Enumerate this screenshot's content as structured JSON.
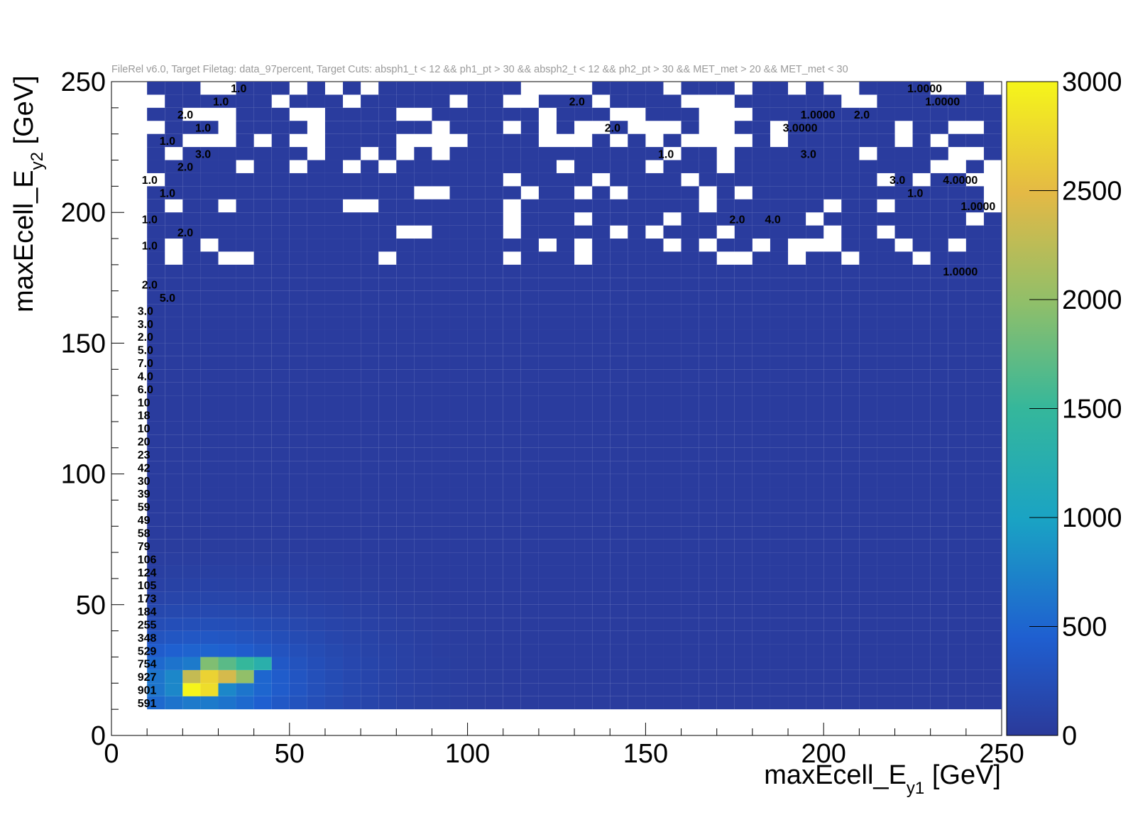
{
  "header": "FileRel v6.0, Target Filetag: data_97percent, Target Cuts: absph1_t < 12 && ph1_pt > 30 && absph2_t < 12 && ph2_pt > 30 && MET_met > 20 && MET_met < 30",
  "chart_data": {
    "type": "heatmap",
    "title": "",
    "xlabel": "maxEcell_E_y1 [GeV]",
    "ylabel": "maxEcell_E_y2 [GeV]",
    "xlim": [
      0,
      250
    ],
    "ylim": [
      0,
      250
    ],
    "x_ticks": [
      "0",
      "50",
      "100",
      "150",
      "200",
      "250"
    ],
    "y_ticks": [
      "0",
      "50",
      "100",
      "150",
      "200",
      "250"
    ],
    "colorbar": {
      "range": [
        0,
        3000
      ],
      "ticks": [
        "0",
        "500",
        "1000",
        "1500",
        "2000",
        "2500",
        "3000"
      ]
    },
    "colors": {
      "low": "#2b3a9a",
      "mid": "#1aa3c4",
      "high": "#f5e11a",
      "text": "#000000"
    },
    "y_row_labels": [
      {
        "y": 12.5,
        "label": "591"
      },
      {
        "y": 17.5,
        "label": "901"
      },
      {
        "y": 22.5,
        "label": "927"
      },
      {
        "y": 27.5,
        "label": "754"
      },
      {
        "y": 32.5,
        "label": "529"
      },
      {
        "y": 37.5,
        "label": "348"
      },
      {
        "y": 42.5,
        "label": "255"
      },
      {
        "y": 47.5,
        "label": "184"
      },
      {
        "y": 52.5,
        "label": "173"
      },
      {
        "y": 57.5,
        "label": "105"
      },
      {
        "y": 62.5,
        "label": "124"
      },
      {
        "y": 67.5,
        "label": "106"
      },
      {
        "y": 72.5,
        "label": "79"
      },
      {
        "y": 77.5,
        "label": "58"
      },
      {
        "y": 82.5,
        "label": "49"
      },
      {
        "y": 87.5,
        "label": "59"
      },
      {
        "y": 92.5,
        "label": "39"
      },
      {
        "y": 97.5,
        "label": "30"
      },
      {
        "y": 102.5,
        "label": "42"
      },
      {
        "y": 107.5,
        "label": "23"
      },
      {
        "y": 112.5,
        "label": "20"
      },
      {
        "y": 117.5,
        "label": "10"
      },
      {
        "y": 122.5,
        "label": "18"
      },
      {
        "y": 127.5,
        "label": "10"
      },
      {
        "y": 132.5,
        "label": "6.0"
      },
      {
        "y": 137.5,
        "label": "4.0"
      },
      {
        "y": 142.5,
        "label": "7.0"
      },
      {
        "y": 147.5,
        "label": "5.0"
      },
      {
        "y": 152.5,
        "label": "2.0"
      },
      {
        "y": 157.5,
        "label": "3.0"
      },
      {
        "y": 162.5,
        "label": "3.0"
      }
    ],
    "notable_cells": [
      {
        "x": 22.5,
        "y": 17.5,
        "value": 3000
      },
      {
        "x": 27.5,
        "y": 17.5,
        "value": 2800
      },
      {
        "x": 27.5,
        "y": 22.5,
        "value": 2700
      },
      {
        "x": 32.5,
        "y": 22.5,
        "value": 2400
      },
      {
        "x": 22.5,
        "y": 22.5,
        "value": 2300
      },
      {
        "x": 37.5,
        "y": 22.5,
        "value": 2000
      },
      {
        "x": 27.5,
        "y": 27.5,
        "value": 1900
      },
      {
        "x": 32.5,
        "y": 27.5,
        "value": 1700
      },
      {
        "x": 37.5,
        "y": 27.5,
        "value": 1500
      },
      {
        "x": 42.5,
        "y": 27.5,
        "value": 1300
      }
    ],
    "sparse_labels": [
      {
        "x": 37.5,
        "y": 247.5,
        "label": "1.0"
      },
      {
        "x": 227.5,
        "y": 247.5,
        "label": "1.0000"
      },
      {
        "x": 197.5,
        "y": 237.5,
        "label": "1.0000"
      },
      {
        "x": 232.5,
        "y": 242.5,
        "label": "1.0000"
      },
      {
        "x": 22.5,
        "y": 237.5,
        "label": "2.0"
      },
      {
        "x": 212.5,
        "y": 237.5,
        "label": "2.0"
      },
      {
        "x": 197.5,
        "y": 222.5,
        "label": "3.0"
      },
      {
        "x": 237.5,
        "y": 212.5,
        "label": "4.0000"
      },
      {
        "x": 222.5,
        "y": 212.5,
        "label": "3.0"
      },
      {
        "x": 227.5,
        "y": 207.5,
        "label": "1.0"
      },
      {
        "x": 187.5,
        "y": 197.5,
        "label": "4.0"
      },
      {
        "x": 177.5,
        "y": 197.5,
        "label": "2.0"
      },
      {
        "x": 242.5,
        "y": 202.5,
        "label": "1.0000"
      },
      {
        "x": 237.5,
        "y": 177.5,
        "label": "1.0000"
      },
      {
        "x": 157.5,
        "y": 222.5,
        "label": "1.0"
      },
      {
        "x": 142.5,
        "y": 232.5,
        "label": "2.0"
      },
      {
        "x": 132.5,
        "y": 242.5,
        "label": "2.0"
      },
      {
        "x": 12.5,
        "y": 197.5,
        "label": "1.0"
      },
      {
        "x": 12.5,
        "y": 187.5,
        "label": "1.0"
      },
      {
        "x": 12.5,
        "y": 172.5,
        "label": "2.0"
      },
      {
        "x": 17.5,
        "y": 167.5,
        "label": "5.0"
      },
      {
        "x": 12.5,
        "y": 212.5,
        "label": "1.0"
      },
      {
        "x": 17.5,
        "y": 207.5,
        "label": "1.0"
      },
      {
        "x": 27.5,
        "y": 222.5,
        "label": "3.0"
      },
      {
        "x": 17.5,
        "y": 227.5,
        "label": "1.0"
      },
      {
        "x": 27.5,
        "y": 232.5,
        "label": "1.0"
      },
      {
        "x": 32.5,
        "y": 242.5,
        "label": "1.0"
      },
      {
        "x": 22.5,
        "y": 192.5,
        "label": "2.0"
      },
      {
        "x": 22.5,
        "y": 217.5,
        "label": "2.0"
      },
      {
        "x": 192.5,
        "y": 232.5,
        "label": "3.0000"
      }
    ]
  }
}
